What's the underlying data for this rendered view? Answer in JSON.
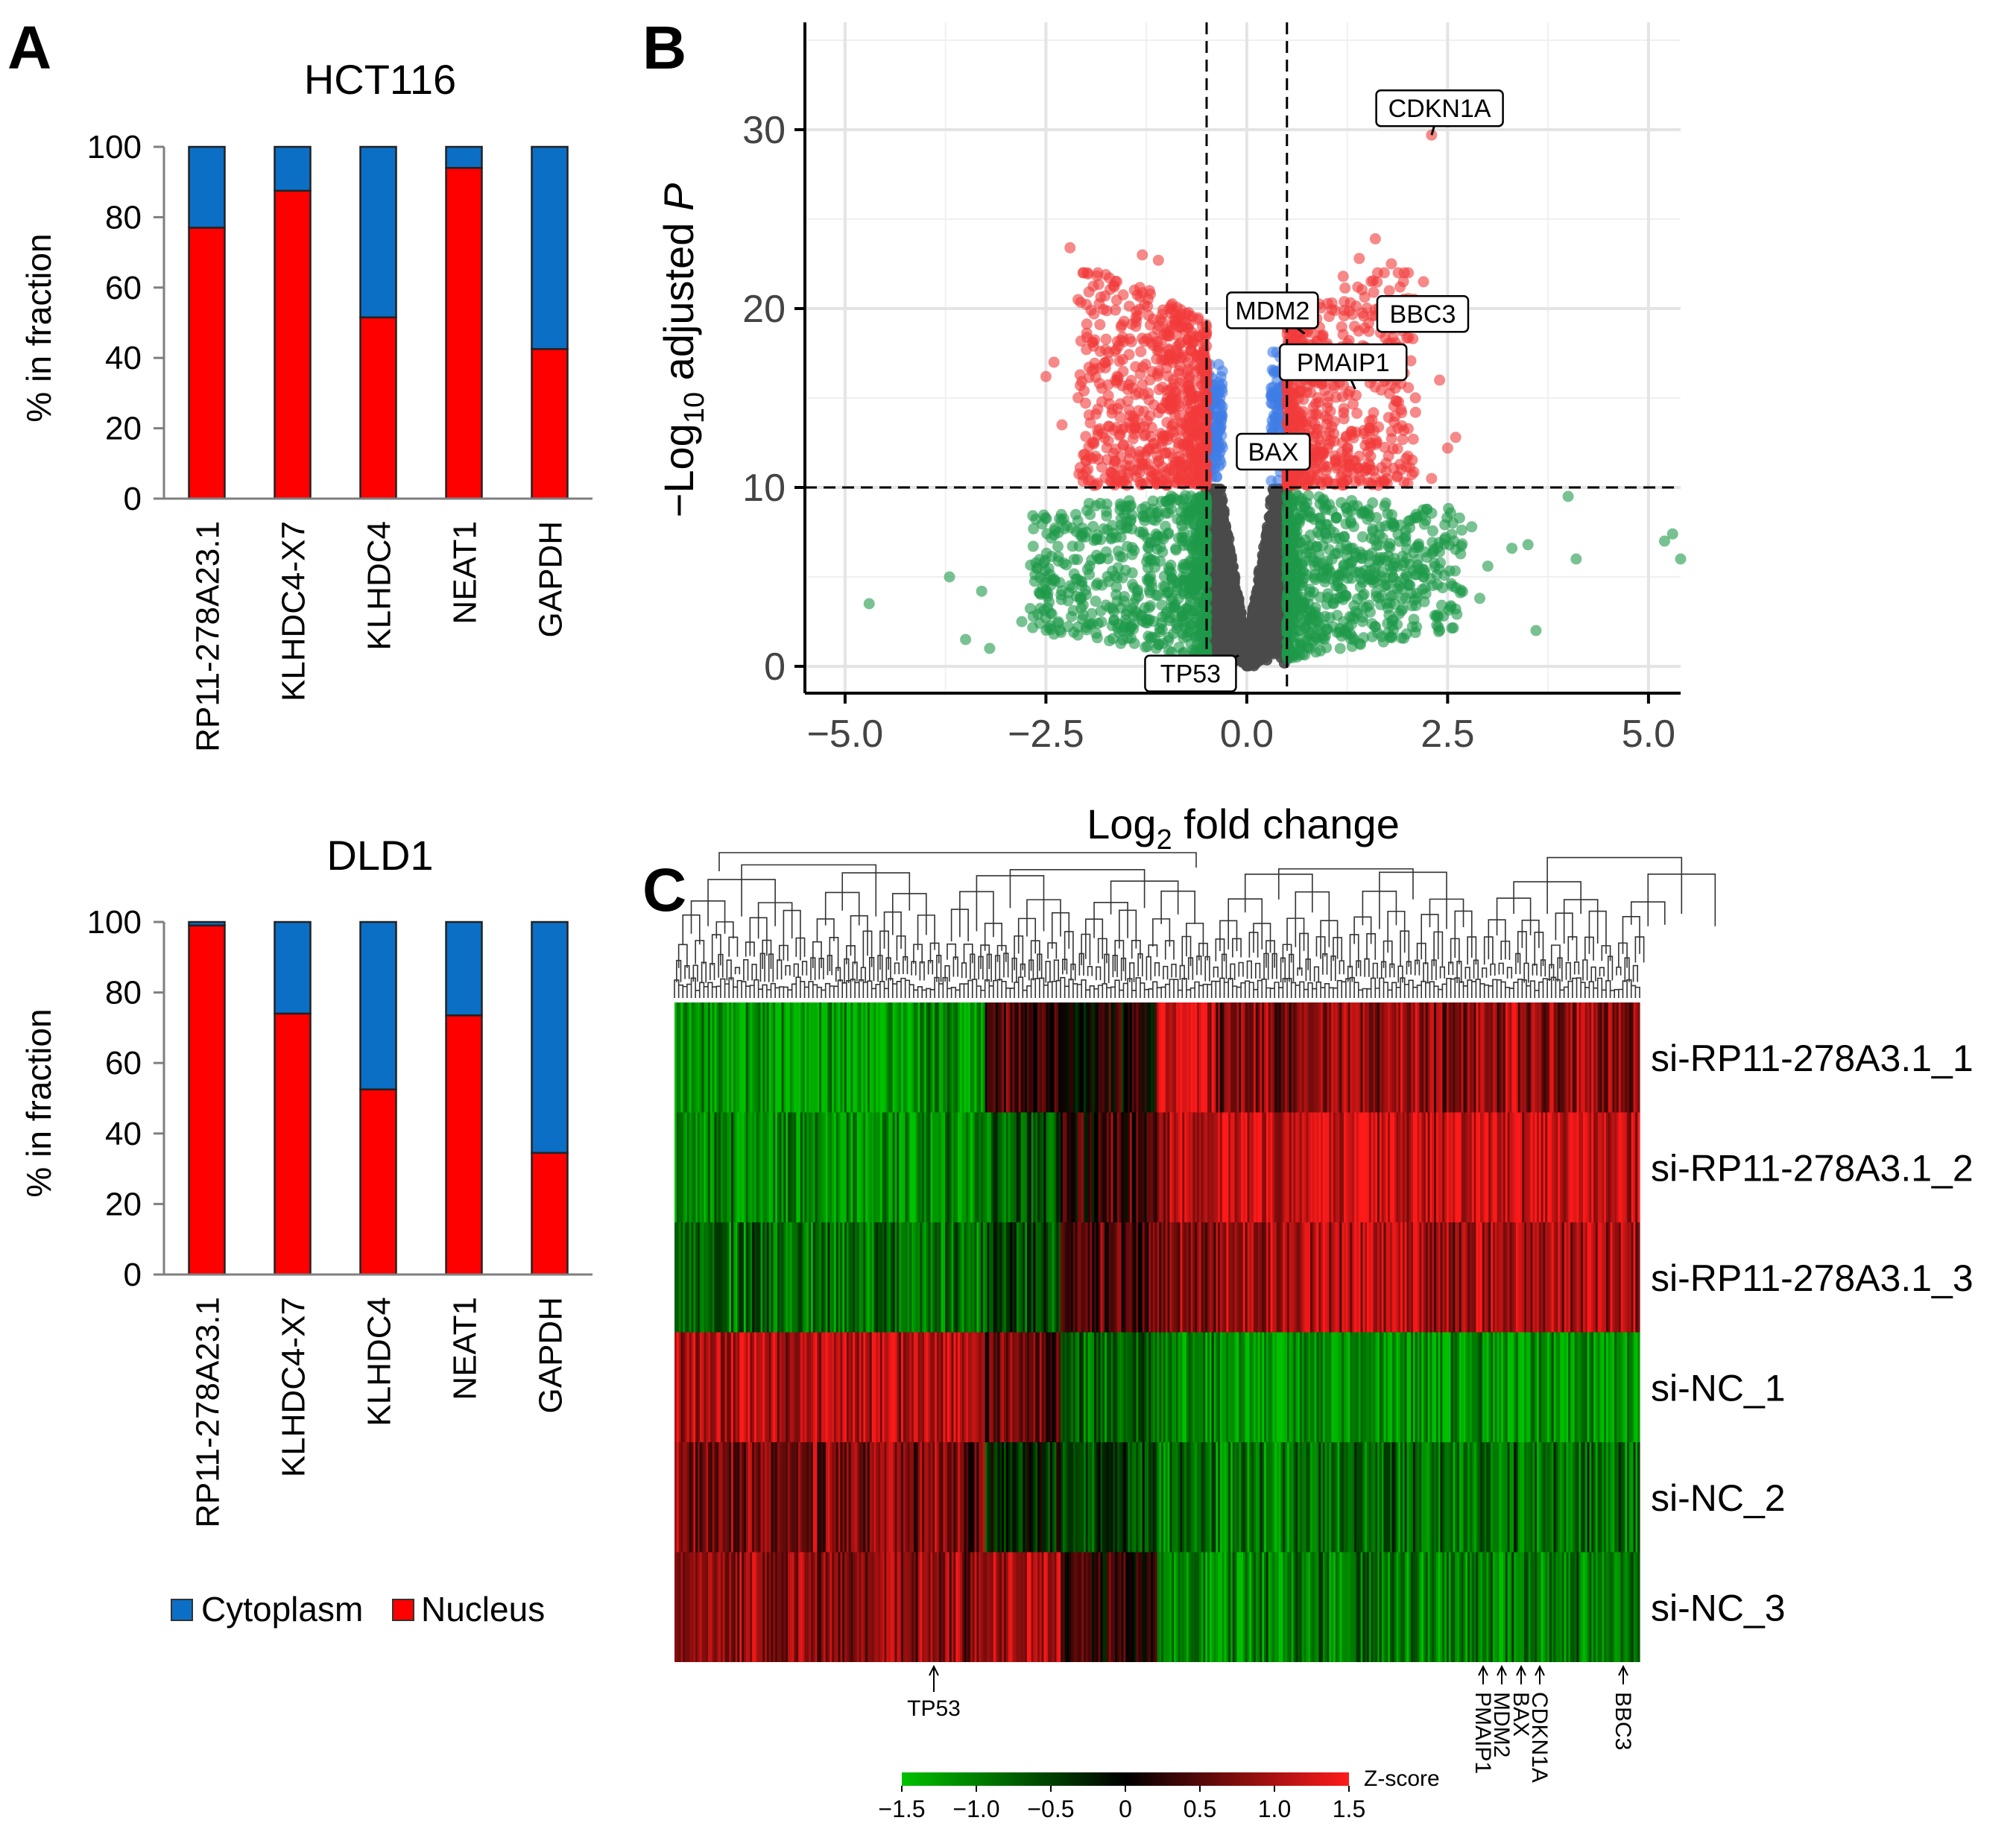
{
  "figure": {
    "panel_letters": [
      "A",
      "B",
      "C"
    ]
  },
  "colors": {
    "cytoplasm": "#0b6fc6",
    "nucleus": "#ff0000",
    "up": "#f23b3b",
    "ns_fc": "#3f7de6",
    "sig_low": "#1e9a4a",
    "ns": "#4a4a4a",
    "heat_low": "#00c000",
    "heat_mid": "#000000",
    "heat_high": "#ff1a1a"
  },
  "chart_data": [
    {
      "id": "hct116",
      "type": "bar",
      "stacked": true,
      "title": "HCT116",
      "ylabel": "% in fraction",
      "ylim": [
        0,
        100
      ],
      "yticks": [
        "0",
        "20",
        "40",
        "60",
        "80",
        "100"
      ],
      "categories": [
        "RP11-278A23.1",
        "KLHDC4-X7",
        "KLHDC4",
        "NEAT1",
        "GAPDH"
      ],
      "series": [
        {
          "name": "Nucleus",
          "values": [
            77,
            87.5,
            51.5,
            94,
            42.5
          ]
        },
        {
          "name": "Cytoplasm",
          "values": [
            23,
            12.5,
            48.5,
            6,
            57.5
          ]
        }
      ]
    },
    {
      "id": "dld1",
      "type": "bar",
      "stacked": true,
      "title": "DLD1",
      "ylabel": "% in fraction",
      "ylim": [
        0,
        100
      ],
      "yticks": [
        "0",
        "20",
        "40",
        "60",
        "80",
        "100"
      ],
      "categories": [
        "RP11-278A23.1",
        "KLHDC4-X7",
        "KLHDC4",
        "NEAT1",
        "GAPDH"
      ],
      "series": [
        {
          "name": "Nucleus",
          "values": [
            99,
            74,
            52.5,
            73.5,
            34.5
          ]
        },
        {
          "name": "Cytoplasm",
          "values": [
            1,
            26,
            47.5,
            26.5,
            65.5
          ]
        }
      ],
      "legend": [
        "Cytoplasm",
        "Nucleus"
      ]
    },
    {
      "id": "volcano",
      "type": "scatter",
      "xlabel_main": "Log",
      "xlabel_sub": "2",
      "xlabel_rest": " fold change",
      "ylabel_main": "−Log",
      "ylabel_sub": "10",
      "ylabel_rest": " adjusted ",
      "ylabel_italic": "P",
      "xlim": [
        -5.5,
        5.4
      ],
      "ylim": [
        -1.5,
        36
      ],
      "xticks": [
        {
          "v": -5,
          "t": "−5.0"
        },
        {
          "v": -2.5,
          "t": "−2.5"
        },
        {
          "v": 0,
          "t": "0.0"
        },
        {
          "v": 2.5,
          "t": "2.5"
        },
        {
          "v": 5,
          "t": "5.0"
        }
      ],
      "yticks": [
        {
          "v": 0,
          "t": "0"
        },
        {
          "v": 10,
          "t": "10"
        },
        {
          "v": 20,
          "t": "20"
        },
        {
          "v": 30,
          "t": "30"
        }
      ],
      "fc_cutoff": 0.5,
      "p_cutoff": 10,
      "labels": [
        {
          "text": "CDKN1A",
          "x": 2.3,
          "y": 29.7
        },
        {
          "text": "MDM2",
          "x": 0.72,
          "y": 18.6
        },
        {
          "text": "BBC3",
          "x": 1.92,
          "y": 18.9
        },
        {
          "text": "PMAIP1",
          "x": 1.35,
          "y": 15.5
        },
        {
          "text": "BAX",
          "x": 0.78,
          "y": 13.0
        },
        {
          "text": "TP53",
          "x": -0.1,
          "y": 0.6
        }
      ]
    },
    {
      "id": "heatmap",
      "type": "heatmap",
      "rows": [
        "si-RP11-278A3.1_1",
        "si-RP11-278A3.1_2",
        "si-RP11-278A3.1_3",
        "si-NC_1",
        "si-NC_2",
        "si-NC_3"
      ],
      "gene_labels": [
        "TP53",
        "PMAIP1",
        "MDM2",
        "BAX",
        "CDKN1A",
        "BBC3"
      ],
      "scale_label": "Z-score",
      "scale_ticks": [
        "−1.5",
        "−1.0",
        "−0.5",
        "0",
        "0.5",
        "1.0",
        "1.5"
      ],
      "scale_range": [
        -1.5,
        1.5
      ]
    }
  ]
}
